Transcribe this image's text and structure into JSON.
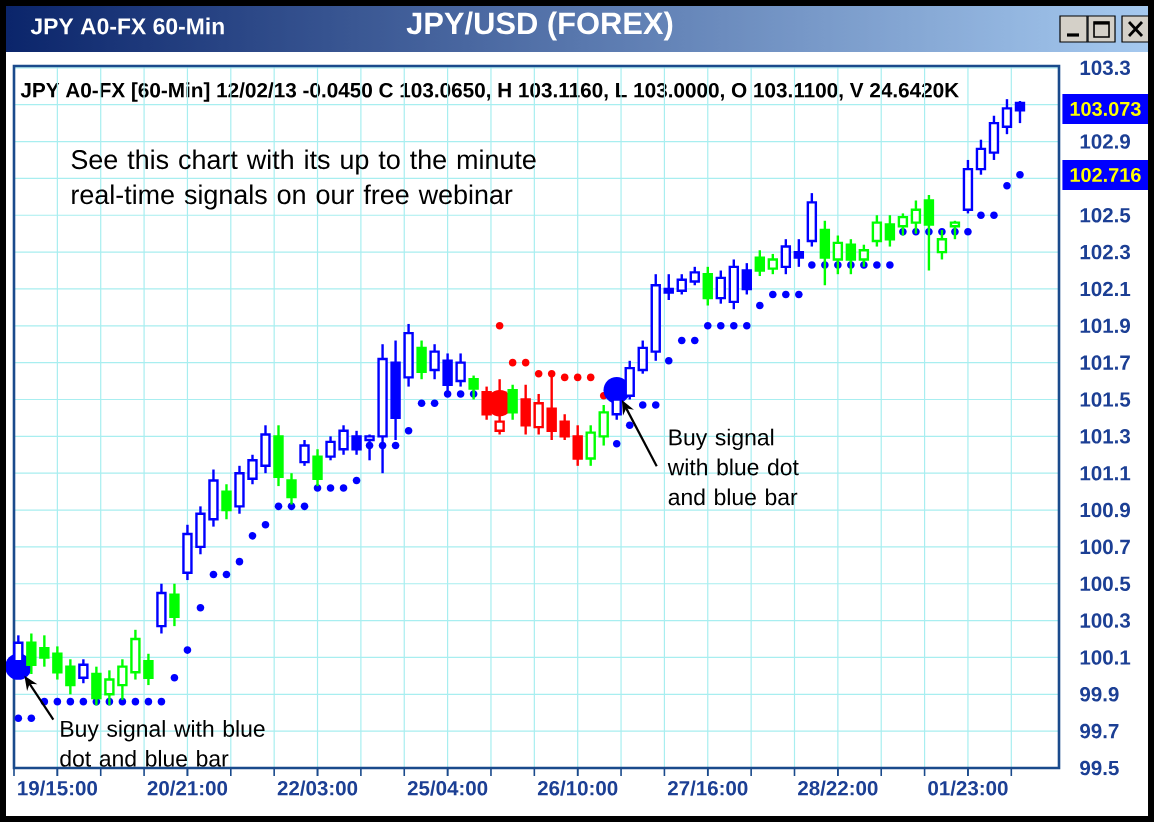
{
  "chart_data": {
    "type": "candlestick",
    "title": "JPY/USD (FOREX)",
    "subtitle": "JPY A0-FX [60-Min] 12/02/13 -0.0450 C 103.0650, H 103.1160, L 103.0000, O 103.1100, V 24.6420K",
    "annotations": [
      "JPY A0-FX 60-Min",
      "See this chart with its up to the minute real-time signals on our free webinar",
      "Buy signal with blue dot and blue bar",
      "Buy signal with blue dot and blue bar",
      "103.073",
      "102.716"
    ],
    "categories": [
      null,
      null,
      null,
      "19/15:00",
      null,
      null,
      null,
      null,
      null,
      null,
      null,
      null,
      null,
      "20/21:00",
      null,
      null,
      null,
      null,
      null,
      null,
      null,
      null,
      null,
      "22/03:00",
      null,
      null,
      null,
      null,
      null,
      null,
      null,
      null,
      null,
      "25/04:00",
      null,
      null,
      null,
      null,
      null,
      null,
      null,
      null,
      null,
      "26/10:00",
      null,
      null,
      null,
      null,
      null,
      null,
      null,
      null,
      null,
      "27/16:00",
      null,
      null,
      null,
      null,
      null,
      null,
      null,
      null,
      null,
      "28/22:00",
      null,
      null,
      null,
      null,
      null,
      null,
      null,
      null,
      null,
      "01/23:00",
      null,
      null,
      null,
      null
    ],
    "ylim": [
      99.5,
      103.31
    ],
    "yticks": [
      99.5,
      99.7,
      99.9,
      100.1,
      100.3,
      100.5,
      100.7,
      100.9,
      101.1,
      101.3,
      101.5,
      101.7,
      101.9,
      102.1,
      102.3,
      102.5,
      {
        "value": 102.7,
        "label": null
      },
      102.9,
      {
        "value": 103.1,
        "label": null
      },
      103.3
    ],
    "grid": true,
    "marker": "circle",
    "ohlc": [
      [
        100.08,
        100.22,
        100.05,
        100.18
      ],
      [
        100.18,
        100.23,
        100.01,
        100.06
      ],
      [
        100.15,
        100.22,
        100.05,
        100.1
      ],
      [
        100.12,
        100.16,
        99.98,
        100.02
      ],
      [
        100.05,
        100.09,
        99.9,
        99.95
      ],
      [
        99.99,
        100.09,
        99.96,
        100.06
      ],
      [
        100.01,
        100.05,
        99.84,
        99.88
      ],
      [
        99.9,
        100.03,
        99.84,
        99.98
      ],
      [
        99.95,
        100.09,
        99.87,
        100.05
      ],
      [
        100.02,
        100.25,
        99.98,
        100.2
      ],
      [
        100.08,
        100.12,
        99.95,
        99.99
      ],
      [
        100.27,
        100.5,
        100.23,
        100.45
      ],
      [
        100.44,
        100.5,
        100.27,
        100.32
      ],
      [
        100.56,
        100.82,
        100.52,
        100.77
      ],
      [
        100.7,
        100.92,
        100.66,
        100.88
      ],
      [
        100.85,
        101.12,
        100.81,
        101.06
      ],
      [
        101.0,
        101.04,
        100.85,
        100.9
      ],
      [
        100.92,
        101.14,
        100.88,
        101.1
      ],
      [
        101.07,
        101.2,
        101.04,
        101.17
      ],
      [
        101.14,
        101.36,
        101.1,
        101.31
      ],
      [
        101.3,
        101.36,
        101.03,
        101.08
      ],
      [
        101.06,
        101.1,
        100.93,
        100.97
      ],
      [
        101.16,
        101.28,
        101.14,
        101.25
      ],
      [
        101.19,
        101.23,
        101.03,
        101.07
      ],
      [
        101.19,
        101.3,
        101.17,
        101.27
      ],
      [
        101.23,
        101.36,
        101.2,
        101.33
      ],
      [
        101.3,
        101.33,
        101.2,
        101.23
      ],
      [
        101.28,
        101.31,
        101.17,
        101.3
      ],
      [
        101.3,
        101.8,
        101.1,
        101.72
      ],
      [
        101.7,
        101.82,
        101.28,
        101.4
      ],
      [
        101.62,
        101.91,
        101.57,
        101.86
      ],
      [
        101.78,
        101.82,
        101.61,
        101.65
      ],
      [
        101.66,
        101.8,
        101.61,
        101.76
      ],
      [
        101.71,
        101.75,
        101.53,
        101.58
      ],
      [
        101.6,
        101.75,
        101.57,
        101.7
      ],
      [
        101.61,
        101.63,
        101.5,
        101.56
      ],
      [
        101.54,
        101.57,
        101.39,
        101.42
      ],
      [
        101.33,
        101.61,
        101.31,
        101.38
      ],
      [
        101.55,
        101.58,
        101.39,
        101.43
      ],
      [
        101.5,
        101.58,
        101.31,
        101.36
      ],
      [
        101.35,
        101.53,
        101.31,
        101.48
      ],
      [
        101.45,
        101.63,
        101.28,
        101.33
      ],
      [
        101.38,
        101.42,
        101.28,
        101.3
      ],
      [
        101.3,
        101.36,
        101.14,
        101.18
      ],
      [
        101.18,
        101.36,
        101.14,
        101.32
      ],
      [
        101.3,
        101.47,
        101.25,
        101.43
      ],
      [
        101.42,
        101.53,
        101.39,
        101.5
      ],
      [
        101.52,
        101.71,
        101.5,
        101.67
      ],
      [
        101.66,
        101.82,
        101.64,
        101.78
      ],
      [
        101.76,
        102.18,
        101.71,
        102.12
      ],
      [
        102.1,
        102.18,
        102.04,
        102.08
      ],
      [
        102.09,
        102.18,
        102.07,
        102.15
      ],
      [
        102.14,
        102.22,
        102.12,
        102.19
      ],
      [
        102.18,
        102.22,
        102.01,
        102.05
      ],
      [
        102.05,
        102.2,
        102.02,
        102.16
      ],
      [
        102.03,
        102.26,
        101.99,
        102.22
      ],
      [
        102.2,
        102.24,
        102.07,
        102.1
      ],
      [
        102.27,
        102.31,
        102.17,
        102.2
      ],
      [
        102.21,
        102.29,
        102.18,
        102.26
      ],
      [
        102.22,
        102.37,
        102.18,
        102.33
      ],
      [
        102.3,
        102.37,
        102.22,
        102.27
      ],
      [
        102.36,
        102.62,
        102.33,
        102.57
      ],
      [
        102.42,
        102.47,
        102.12,
        102.27
      ],
      [
        102.26,
        102.39,
        102.18,
        102.35
      ],
      [
        102.34,
        102.37,
        102.18,
        102.26
      ],
      [
        102.26,
        102.34,
        102.22,
        102.31
      ],
      [
        102.36,
        102.5,
        102.33,
        102.46
      ],
      [
        102.45,
        102.5,
        102.33,
        102.37
      ],
      [
        102.44,
        102.51,
        102.39,
        102.49
      ],
      [
        102.46,
        102.58,
        102.4,
        102.53
      ],
      [
        102.58,
        102.61,
        102.2,
        102.45
      ],
      [
        102.3,
        102.42,
        102.26,
        102.37
      ],
      [
        102.44,
        102.47,
        102.37,
        102.46
      ],
      [
        102.53,
        102.8,
        102.51,
        102.75
      ],
      [
        102.75,
        102.91,
        102.72,
        102.86
      ],
      [
        102.84,
        103.04,
        102.8,
        103.0
      ],
      [
        102.98,
        103.13,
        102.94,
        103.08
      ],
      [
        103.11,
        103.12,
        103.0,
        103.07
      ]
    ],
    "colors": [
      "#0000ff",
      "#00ff00",
      "#00ff00",
      "#00ff00",
      "#00ff00",
      "#0000ff",
      "#00ff00",
      "#00ff00",
      "#00ff00",
      "#00ff00",
      "#00ff00",
      "#0000ff",
      "#00ff00",
      "#0000ff",
      "#0000ff",
      "#0000ff",
      "#00ff00",
      "#0000ff",
      "#0000ff",
      "#0000ff",
      "#00ff00",
      "#00ff00",
      "#0000ff",
      "#00ff00",
      "#0000ff",
      "#0000ff",
      "#0000ff",
      "#0000ff",
      "#0000ff",
      "#0000ff",
      "#0000ff",
      "#00ff00",
      "#0000ff",
      "#0000ff",
      "#0000ff",
      "#00ff00",
      "#ff0000",
      "#ff0000",
      "#00ff00",
      "#ff0000",
      "#ff0000",
      "#ff0000",
      "#ff0000",
      "#ff0000",
      "#00ff00",
      "#00ff00",
      "#0000ff",
      "#0000ff",
      "#0000ff",
      "#0000ff",
      "#0000ff",
      "#0000ff",
      "#0000ff",
      "#00ff00",
      "#0000ff",
      "#0000ff",
      "#0000ff",
      "#00ff00",
      "#00ff00",
      "#0000ff",
      "#0000ff",
      "#0000ff",
      "#00ff00",
      "#00ff00",
      "#00ff00",
      "#00ff00",
      "#00ff00",
      "#00ff00",
      "#00ff00",
      "#00ff00",
      "#00ff00",
      "#00ff00",
      "#00ff00",
      "#0000ff",
      "#0000ff",
      "#0000ff",
      "#0000ff",
      "#0000ff"
    ],
    "series": [
      {
        "type": "scatter",
        "color": "#0000ff",
        "values": [
          99.77,
          99.77,
          99.86,
          99.86,
          99.86,
          99.86,
          99.86,
          99.86,
          99.86,
          99.86,
          99.86,
          99.86,
          99.99,
          100.14,
          100.37,
          100.55,
          100.55,
          100.62,
          100.76,
          100.82,
          100.92,
          100.92,
          100.92,
          101.02,
          101.02,
          101.02,
          101.06,
          101.25,
          101.25,
          101.25,
          101.33,
          101.48,
          101.48,
          101.53,
          101.53,
          101.53,
          null,
          null,
          null,
          null,
          null,
          null,
          null,
          null,
          null,
          null,
          101.26,
          101.36,
          101.47,
          101.47,
          101.71,
          101.82,
          101.82,
          101.9,
          101.9,
          101.9,
          101.9,
          102.01,
          102.07,
          102.07,
          102.07,
          102.23,
          102.23,
          102.23,
          102.23,
          102.23,
          102.23,
          102.23,
          102.41,
          102.41,
          102.41,
          102.41,
          102.41,
          102.41,
          102.5,
          102.5,
          102.66,
          102.72
        ]
      },
      {
        "type": "scatter",
        "color": "#ff0000",
        "values": [
          null,
          null,
          null,
          null,
          null,
          null,
          null,
          null,
          null,
          null,
          null,
          null,
          null,
          null,
          null,
          null,
          null,
          null,
          null,
          null,
          null,
          null,
          null,
          null,
          null,
          null,
          null,
          null,
          null,
          null,
          null,
          null,
          null,
          null,
          null,
          null,
          null,
          101.9,
          101.7,
          101.7,
          101.64,
          101.64,
          101.62,
          101.62,
          101.62,
          101.52,
          null,
          null,
          null,
          null,
          null,
          null,
          null,
          null,
          null,
          null,
          null,
          null,
          null,
          null,
          null,
          null,
          null,
          null,
          null,
          null,
          null,
          null,
          null,
          null,
          null,
          null,
          null,
          null,
          null,
          null,
          null,
          null
        ]
      },
      {
        "type": "bubble",
        "values": [
          100.05,
          null,
          null,
          null,
          null,
          null,
          null,
          null,
          null,
          null,
          null,
          null,
          null,
          null,
          null,
          null,
          null,
          null,
          null,
          null,
          null,
          null,
          null,
          null,
          null,
          null,
          null,
          null,
          null,
          null,
          null,
          null,
          null,
          null,
          null,
          null,
          null,
          101.48,
          null,
          null,
          null,
          null,
          null,
          null,
          null,
          null,
          101.55,
          null,
          null,
          null,
          null,
          null,
          null,
          null,
          null,
          null,
          null,
          null,
          null,
          null,
          null,
          null,
          null,
          null,
          null,
          null,
          null,
          null,
          null,
          null,
          null,
          null,
          null,
          null,
          null,
          null,
          null,
          null
        ],
        "sizes": [
          1,
          null,
          null,
          null,
          null,
          null,
          null,
          null,
          null,
          null,
          null,
          null,
          null,
          null,
          null,
          null,
          null,
          null,
          null,
          null,
          null,
          null,
          null,
          null,
          null,
          null,
          null,
          null,
          null,
          null,
          null,
          null,
          null,
          null,
          null,
          null,
          null,
          1,
          null,
          null,
          null,
          null,
          null,
          null,
          null,
          null,
          1,
          null,
          null,
          null,
          null,
          null,
          null,
          null,
          null,
          null,
          null,
          null,
          null,
          null,
          null,
          null,
          null,
          null,
          null,
          null,
          null,
          null,
          null,
          null,
          null,
          null,
          null,
          null,
          null,
          null,
          null,
          null
        ],
        "colors": [
          "#0000ff",
          null,
          null,
          null,
          null,
          null,
          null,
          null,
          null,
          null,
          null,
          null,
          null,
          null,
          null,
          null,
          null,
          null,
          null,
          null,
          null,
          null,
          null,
          null,
          null,
          null,
          null,
          null,
          null,
          null,
          null,
          null,
          null,
          null,
          null,
          null,
          null,
          "#ff0000",
          null,
          null,
          null,
          null,
          null,
          null,
          null,
          null,
          "#0000ff",
          null,
          null,
          null,
          null,
          null,
          null,
          null,
          null,
          null,
          null,
          null,
          null,
          null,
          null,
          null,
          null,
          null,
          null,
          null,
          null,
          null,
          null,
          null,
          null,
          null,
          null,
          null,
          null,
          null,
          null,
          null
        ]
      }
    ]
  }
}
